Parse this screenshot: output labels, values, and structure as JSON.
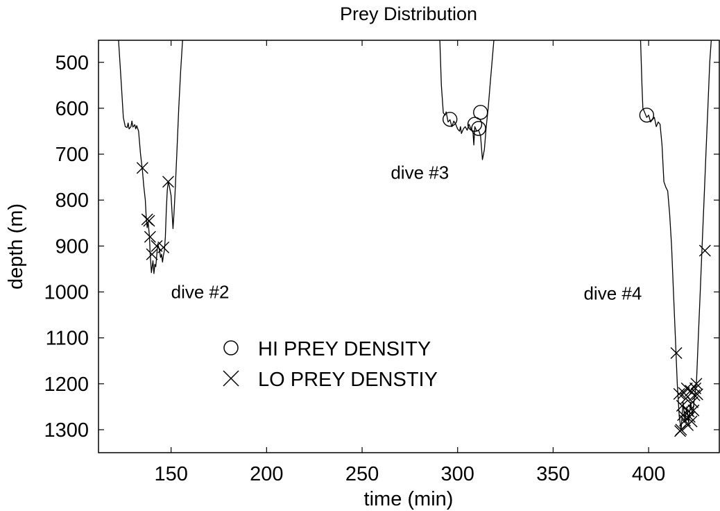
{
  "chart_data": {
    "type": "line",
    "title": "Prey Distribution",
    "xlabel": "time (min)",
    "ylabel": "depth (m)",
    "xlim": [
      112,
      437
    ],
    "ylim": [
      1350,
      452
    ],
    "y_inverted": true,
    "grid": false,
    "legend_placement": "lower-left",
    "x_ticks": [
      150,
      200,
      250,
      300,
      350,
      400
    ],
    "y_ticks": [
      500,
      600,
      700,
      800,
      900,
      1000,
      1100,
      1200,
      1300
    ],
    "x_tick_labels": [
      "150",
      "200",
      "250",
      "300",
      "350",
      "400"
    ],
    "y_tick_labels": [
      "500",
      "600",
      "700",
      "800",
      "900",
      "1000",
      "1100",
      "1200",
      "1300"
    ],
    "annotations": [
      {
        "text": "dive #2",
        "x": 150,
        "y": 1000
      },
      {
        "text": "dive #3",
        "x": 265,
        "y": 740
      },
      {
        "text": "dive #4",
        "x": 366,
        "y": 1003
      }
    ],
    "series": [
      {
        "style": "line",
        "color": "#000000",
        "segments": [
          [
            [
              122.5,
              452
            ],
            [
              124,
              550
            ],
            [
              125,
              620
            ],
            [
              126,
              640
            ],
            [
              127,
              642
            ],
            [
              127.5,
              632
            ],
            [
              128,
              645
            ],
            [
              129,
              640
            ],
            [
              129.5,
              628
            ],
            [
              130,
              641
            ],
            [
              131,
              636
            ],
            [
              131.5,
              645
            ],
            [
              132,
              638
            ],
            [
              133,
              650
            ],
            [
              134,
              700
            ],
            [
              135,
              735
            ],
            [
              135.7,
              770
            ],
            [
              136.5,
              800
            ],
            [
              137,
              838
            ],
            [
              137.5,
              860
            ],
            [
              138,
              848
            ],
            [
              138.7,
              880
            ],
            [
              139,
              915
            ],
            [
              139.7,
              958
            ],
            [
              140.5,
              932
            ],
            [
              141,
              960
            ],
            [
              141.5,
              940
            ],
            [
              142,
              945
            ],
            [
              143,
              895
            ],
            [
              144,
              910
            ],
            [
              144.5,
              925
            ],
            [
              145,
              918
            ],
            [
              145.5,
              935
            ],
            [
              146,
              920
            ],
            [
              146.5,
              910
            ],
            [
              147,
              880
            ],
            [
              147.5,
              820
            ],
            [
              148,
              780
            ],
            [
              148.5,
              760
            ],
            [
              149,
              768
            ],
            [
              150,
              790
            ],
            [
              151,
              862
            ],
            [
              151.5,
              830
            ],
            [
              152,
              790
            ],
            [
              153,
              700
            ],
            [
              154,
              600
            ],
            [
              155,
              520
            ],
            [
              156,
              452
            ]
          ],
          [
            [
              290.7,
              452
            ],
            [
              291.5,
              550
            ],
            [
              292.5,
              610
            ],
            [
              293.5,
              615
            ],
            [
              294,
              608
            ],
            [
              295,
              630
            ],
            [
              296,
              625
            ],
            [
              297,
              640
            ],
            [
              298,
              628
            ],
            [
              299,
              635
            ],
            [
              300,
              645
            ],
            [
              301,
              650
            ],
            [
              301.5,
              640
            ],
            [
              302,
              655
            ],
            [
              303,
              645
            ],
            [
              304,
              640
            ],
            [
              305,
              648
            ],
            [
              306,
              635
            ],
            [
              307,
              645
            ],
            [
              308,
              650
            ],
            [
              308.5,
              680
            ],
            [
              309,
              640
            ],
            [
              310,
              650
            ],
            [
              311,
              648
            ],
            [
              312,
              660
            ],
            [
              313,
              712
            ],
            [
              314,
              690
            ],
            [
              315,
              640
            ],
            [
              316,
              600
            ],
            [
              317,
              550
            ],
            [
              318,
              500
            ],
            [
              319,
              452
            ]
          ],
          [
            [
              395.8,
              452
            ],
            [
              396.5,
              550
            ],
            [
              397,
              600
            ],
            [
              398,
              610
            ],
            [
              399,
              620
            ],
            [
              400,
              615
            ],
            [
              401,
              630
            ],
            [
              402,
              625
            ],
            [
              403,
              620
            ],
            [
              404,
              640
            ],
            [
              405,
              630
            ],
            [
              406,
              635
            ],
            [
              407,
              680
            ],
            [
              408,
              760
            ],
            [
              409,
              772
            ],
            [
              410,
              780
            ],
            [
              411,
              830
            ],
            [
              412,
              900
            ],
            [
              413,
              1000
            ],
            [
              414,
              1100
            ],
            [
              415,
              1200
            ],
            [
              416,
              1270
            ],
            [
              417,
              1300
            ],
            [
              418,
              1240
            ],
            [
              419,
              1280
            ],
            [
              420,
              1250
            ],
            [
              421,
              1285
            ],
            [
              422,
              1240
            ],
            [
              423,
              1270
            ],
            [
              424,
              1230
            ],
            [
              425,
              1200
            ],
            [
              426,
              1100
            ],
            [
              427,
              1000
            ],
            [
              428,
              900
            ],
            [
              429,
              800
            ],
            [
              430,
              700
            ],
            [
              431,
              600
            ],
            [
              432,
              500
            ],
            [
              432.8,
              452
            ]
          ]
        ]
      },
      {
        "name": "HI PREY DENSITY",
        "style": "marker",
        "marker": "circle",
        "points": [
          [
            296,
            624
          ],
          [
            309,
            635
          ],
          [
            311,
            644
          ],
          [
            312,
            609
          ],
          [
            399,
            615
          ]
        ]
      },
      {
        "name": "LO PREY DENSTIY",
        "style": "marker",
        "marker": "x",
        "points": [
          [
            135,
            730
          ],
          [
            137.5,
            842
          ],
          [
            138.5,
            845
          ],
          [
            139,
            880
          ],
          [
            140,
            918
          ],
          [
            142.5,
            900
          ],
          [
            146,
            903
          ],
          [
            148.5,
            760
          ],
          [
            414.5,
            1133
          ],
          [
            416,
            1222
          ],
          [
            416.5,
            1303
          ],
          [
            417,
            1300
          ],
          [
            417.5,
            1248
          ],
          [
            418,
            1268
          ],
          [
            418.5,
            1220
          ],
          [
            419,
            1280
          ],
          [
            419.5,
            1232
          ],
          [
            420,
            1210
          ],
          [
            420.5,
            1290
          ],
          [
            421,
            1260
          ],
          [
            421.5,
            1272
          ],
          [
            422,
            1215
          ],
          [
            422.5,
            1282
          ],
          [
            423,
            1240
          ],
          [
            423.5,
            1258
          ],
          [
            424,
            1225
          ],
          [
            424.5,
            1210
          ],
          [
            425,
            1200
          ],
          [
            425.5,
            1223
          ],
          [
            429.5,
            910
          ]
        ]
      }
    ]
  }
}
